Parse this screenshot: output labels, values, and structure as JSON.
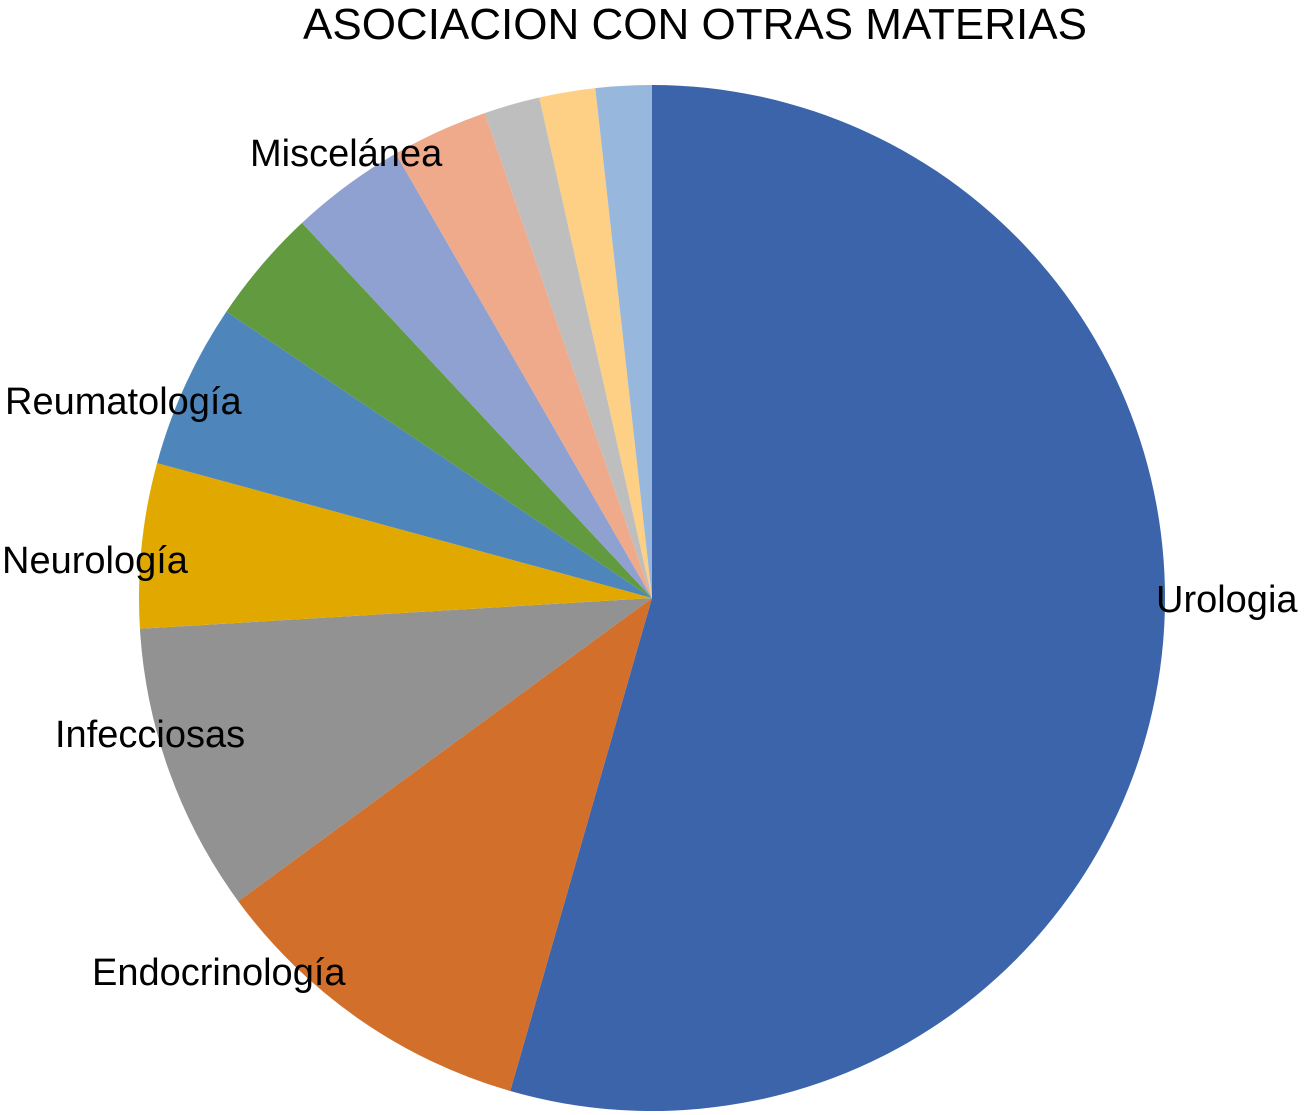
{
  "chart_data": {
    "type": "pie",
    "title": "ASOCIACION CON OTRAS MATERIAS",
    "slices": [
      {
        "label": "Urologia",
        "value": 55.6,
        "color": "#3c64ab"
      },
      {
        "label": "Endocrinología",
        "value": 10.7,
        "color": "#d26f2b"
      },
      {
        "label": "Infecciosas",
        "value": 9.3,
        "color": "#929292"
      },
      {
        "label": "Neurología",
        "value": 5.3,
        "color": "#e1a900"
      },
      {
        "label": "Reumatología",
        "value": 5.3,
        "color": "#4e86bb"
      },
      {
        "label": "",
        "value": 3.7,
        "color": "#629a3f"
      },
      {
        "label": "",
        "value": 3.7,
        "color": "#8fa1d1"
      },
      {
        "label": "Miscelánea",
        "value": 3.1,
        "color": "#efa98b"
      },
      {
        "label": "",
        "value": 1.8,
        "color": "#bebebe"
      },
      {
        "label": "",
        "value": 1.8,
        "color": "#fdd085"
      },
      {
        "label": "",
        "value": 1.8,
        "color": "#97b7dd"
      }
    ]
  }
}
